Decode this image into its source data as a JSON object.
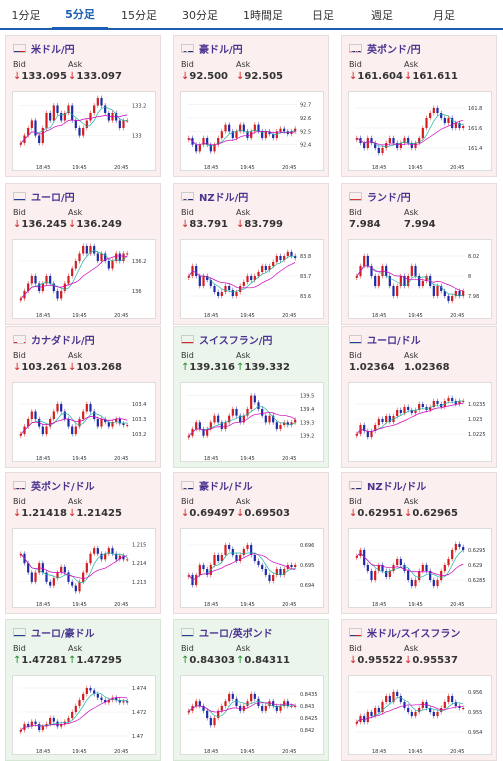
{
  "tabs": [
    "1分足",
    "5分足",
    "15分足",
    "30分足",
    "1時間足",
    "日足",
    "週足",
    "月足"
  ],
  "active_tab": 1,
  "labels": {
    "bid": "Bid",
    "ask": "Ask"
  },
  "colors": {
    "accent": "#1a5fb4",
    "down": "#d21e1e",
    "up": "#1c8c28",
    "candle_up": "#d21e1e",
    "candle_down": "#1f2aa8",
    "ma1": "#d000c0",
    "ma2": "#20b0a0"
  },
  "cards": [
    {
      "pair": "米ドル/円",
      "flag": "us",
      "bid": "133.095",
      "ask": "133.097",
      "dir": "down",
      "chart_data": {
        "type": "candlestick",
        "x_ticks": [
          "18:45",
          "19:45",
          "20:45"
        ],
        "y_ticks": [
          "133.2",
          "133"
        ],
        "ylim": [
          132.85,
          133.25
        ],
        "series": [
          132.95,
          133.0,
          133.05,
          133.1,
          133.0,
          132.95,
          133.05,
          133.15,
          133.1,
          133.2,
          133.15,
          133.1,
          133.15,
          133.2,
          133.1,
          133.05,
          133.0,
          133.05,
          133.1,
          133.15,
          133.2,
          133.25,
          133.2,
          133.15,
          133.1,
          133.15,
          133.1,
          133.05,
          133.1,
          133.1
        ]
      }
    },
    {
      "pair": "豪ドル/円",
      "flag": "au",
      "bid": "92.500",
      "ask": "92.505",
      "dir": "down",
      "chart_data": {
        "type": "candlestick",
        "x_ticks": [
          "18:45",
          "19:45",
          "20:45"
        ],
        "y_ticks": [
          "92.7",
          "92.6",
          "92.5",
          "92.4"
        ],
        "ylim": [
          92.3,
          92.75
        ],
        "series": [
          92.45,
          92.4,
          92.35,
          92.4,
          92.45,
          92.4,
          92.35,
          92.4,
          92.45,
          92.5,
          92.55,
          92.5,
          92.45,
          92.5,
          92.55,
          92.5,
          92.45,
          92.5,
          92.55,
          92.5,
          92.45,
          92.5,
          92.48,
          92.45,
          92.5,
          92.52,
          92.5,
          92.48,
          92.5,
          92.52
        ]
      }
    },
    {
      "pair": "英ポンド/円",
      "flag": "gb",
      "bid": "161.604",
      "ask": "161.611",
      "dir": "down",
      "chart_data": {
        "type": "candlestick",
        "x_ticks": [
          "18:45",
          "19:45",
          "20:45"
        ],
        "y_ticks": [
          "161.8",
          "161.6",
          "161.4"
        ],
        "ylim": [
          161.3,
          161.9
        ],
        "series": [
          161.5,
          161.45,
          161.4,
          161.5,
          161.45,
          161.4,
          161.35,
          161.4,
          161.45,
          161.5,
          161.45,
          161.4,
          161.45,
          161.5,
          161.45,
          161.4,
          161.45,
          161.5,
          161.6,
          161.7,
          161.75,
          161.8,
          161.75,
          161.7,
          161.65,
          161.7,
          161.6,
          161.65,
          161.6,
          161.62
        ]
      }
    },
    {
      "pair": "ユーロ/円",
      "flag": "eu",
      "bid": "136.245",
      "ask": "136.249",
      "dir": "down",
      "chart_data": {
        "type": "candlestick",
        "x_ticks": [
          "18:45",
          "19:45",
          "20:45"
        ],
        "y_ticks": [
          "136.2",
          "136"
        ],
        "ylim": [
          135.9,
          136.3
        ],
        "series": [
          135.95,
          136.0,
          136.05,
          136.1,
          136.05,
          136.0,
          136.05,
          136.1,
          136.05,
          136.0,
          135.95,
          136.0,
          136.05,
          136.1,
          136.15,
          136.2,
          136.25,
          136.3,
          136.25,
          136.3,
          136.25,
          136.2,
          136.25,
          136.2,
          136.15,
          136.2,
          136.25,
          136.2,
          136.25,
          136.25
        ]
      }
    },
    {
      "pair": "NZドル/円",
      "flag": "nz",
      "bid": "83.791",
      "ask": "83.799",
      "dir": "down",
      "chart_data": {
        "type": "candlestick",
        "x_ticks": [
          "18:45",
          "19:45",
          "20:45"
        ],
        "y_ticks": [
          "83.8",
          "83.7",
          "83.6"
        ],
        "ylim": [
          83.55,
          83.85
        ],
        "series": [
          83.7,
          83.75,
          83.7,
          83.65,
          83.7,
          83.68,
          83.65,
          83.62,
          83.6,
          83.62,
          83.65,
          83.63,
          83.6,
          83.62,
          83.65,
          83.67,
          83.7,
          83.68,
          83.7,
          83.72,
          83.75,
          83.73,
          83.75,
          83.77,
          83.8,
          83.78,
          83.8,
          83.82,
          83.8,
          83.79
        ]
      }
    },
    {
      "pair": "ランド/円",
      "flag": "za",
      "bid": "7.984",
      "ask": "7.994",
      "dir": "none",
      "chart_data": {
        "type": "candlestick",
        "x_ticks": [
          "18:45",
          "19:45",
          "20:45"
        ],
        "y_ticks": [
          "8.02",
          "8",
          "7.98"
        ],
        "ylim": [
          7.97,
          8.03
        ],
        "series": [
          8.0,
          8.01,
          8.02,
          8.01,
          8.0,
          7.99,
          8.0,
          8.01,
          8.0,
          7.99,
          7.98,
          7.99,
          8.0,
          7.99,
          8.0,
          8.01,
          8.0,
          7.99,
          7.995,
          8.0,
          7.99,
          7.98,
          7.99,
          7.985,
          7.98,
          7.975,
          7.98,
          7.985,
          7.98,
          7.985
        ]
      }
    },
    {
      "pair": "カナダドル/円",
      "flag": "ca",
      "bid": "103.261",
      "ask": "103.268",
      "dir": "down",
      "chart_data": {
        "type": "candlestick",
        "x_ticks": [
          "18:45",
          "19:45",
          "20:45"
        ],
        "y_ticks": [
          "103.4",
          "103.3",
          "103.2"
        ],
        "ylim": [
          103.1,
          103.5
        ],
        "series": [
          103.2,
          103.25,
          103.3,
          103.35,
          103.3,
          103.25,
          103.2,
          103.25,
          103.3,
          103.35,
          103.4,
          103.35,
          103.3,
          103.25,
          103.2,
          103.25,
          103.3,
          103.35,
          103.4,
          103.35,
          103.3,
          103.25,
          103.3,
          103.28,
          103.25,
          103.28,
          103.3,
          103.27,
          103.26,
          103.26
        ]
      }
    },
    {
      "pair": "スイスフラン/円",
      "flag": "ch",
      "bid": "139.316",
      "ask": "139.332",
      "dir": "up",
      "chart_data": {
        "type": "candlestick",
        "x_ticks": [
          "18:45",
          "19:45",
          "20:45"
        ],
        "y_ticks": [
          "139.5",
          "139.4",
          "139.3",
          "139.2"
        ],
        "ylim": [
          139.1,
          139.55
        ],
        "series": [
          139.2,
          139.25,
          139.3,
          139.25,
          139.2,
          139.25,
          139.3,
          139.35,
          139.3,
          139.25,
          139.3,
          139.35,
          139.4,
          139.35,
          139.3,
          139.35,
          139.4,
          139.5,
          139.45,
          139.4,
          139.35,
          139.3,
          139.35,
          139.3,
          139.25,
          139.28,
          139.3,
          139.28,
          139.3,
          139.32
        ]
      }
    },
    {
      "pair": "ユーロ/ドル",
      "flag": "eu",
      "bid": "1.02364",
      "ask": "1.02368",
      "dir": "none",
      "chart_data": {
        "type": "candlestick",
        "x_ticks": [],
        "y_ticks": [
          "1.0235",
          "1.023",
          "1.0225"
        ],
        "ylim": [
          1.022,
          1.024
        ],
        "series": [
          1.0225,
          1.0228,
          1.0226,
          1.0224,
          1.0226,
          1.0228,
          1.023,
          1.0229,
          1.0231,
          1.0229,
          1.0231,
          1.0233,
          1.0232,
          1.0234,
          1.0233,
          1.0232,
          1.0233,
          1.0235,
          1.0234,
          1.0233,
          1.0234,
          1.0236,
          1.0235,
          1.0234,
          1.0236,
          1.0237,
          1.0236,
          1.0235,
          1.0236,
          1.0236
        ]
      }
    },
    {
      "pair": "英ポンド/ドル",
      "flag": "gb",
      "bid": "1.21418",
      "ask": "1.21425",
      "dir": "down",
      "chart_data": {
        "type": "candlestick",
        "x_ticks": [
          "18:45",
          "19:45",
          "20:45"
        ],
        "y_ticks": [
          "1.215",
          "1.214",
          "1.213"
        ],
        "ylim": [
          1.2123,
          1.2155
        ],
        "series": [
          1.2145,
          1.214,
          1.2135,
          1.213,
          1.2135,
          1.214,
          1.2135,
          1.213,
          1.2128,
          1.2132,
          1.2135,
          1.2138,
          1.2135,
          1.213,
          1.2128,
          1.2125,
          1.213,
          1.2135,
          1.214,
          1.2145,
          1.2148,
          1.2145,
          1.2142,
          1.2145,
          1.2148,
          1.2145,
          1.2142,
          1.2144,
          1.2142,
          1.2142
        ]
      }
    },
    {
      "pair": "豪ドル/ドル",
      "flag": "au",
      "bid": "0.69497",
      "ask": "0.69503",
      "dir": "down",
      "chart_data": {
        "type": "candlestick",
        "x_ticks": [
          "18:45",
          "19:45",
          "20:45"
        ],
        "y_ticks": [
          "0.696",
          "0.695",
          "0.694"
        ],
        "ylim": [
          0.6935,
          0.6965
        ],
        "series": [
          0.6945,
          0.694,
          0.6945,
          0.695,
          0.6948,
          0.6945,
          0.695,
          0.6955,
          0.6952,
          0.6955,
          0.696,
          0.6958,
          0.6955,
          0.6952,
          0.6955,
          0.6958,
          0.696,
          0.6955,
          0.6952,
          0.695,
          0.6948,
          0.6945,
          0.6942,
          0.6945,
          0.6948,
          0.6945,
          0.6948,
          0.695,
          0.6949,
          0.695
        ]
      }
    },
    {
      "pair": "NZドル/ドル",
      "flag": "nz",
      "bid": "0.62951",
      "ask": "0.62965",
      "dir": "down",
      "chart_data": {
        "type": "candlestick",
        "x_ticks": [
          "18:45",
          "19:45",
          "20:45"
        ],
        "y_ticks": [
          "0.6295",
          "0.629",
          "0.6285"
        ],
        "ylim": [
          0.628,
          0.63
        ],
        "series": [
          0.6293,
          0.6295,
          0.629,
          0.6288,
          0.6285,
          0.6288,
          0.629,
          0.6288,
          0.6286,
          0.6288,
          0.629,
          0.6292,
          0.629,
          0.6288,
          0.6285,
          0.6283,
          0.6285,
          0.6288,
          0.629,
          0.6288,
          0.6285,
          0.6283,
          0.6285,
          0.6288,
          0.629,
          0.6292,
          0.6295,
          0.6297,
          0.6296,
          0.6295
        ]
      }
    },
    {
      "pair": "ユーロ/豪ドル",
      "flag": "eu",
      "bid": "1.47281",
      "ask": "1.47295",
      "dir": "up",
      "chart_data": {
        "type": "candlestick",
        "x_ticks": [
          "18:45",
          "19:45",
          "20:45"
        ],
        "y_ticks": [
          "1.474",
          "1.472",
          "1.47"
        ],
        "ylim": [
          1.4695,
          1.4745
        ],
        "series": [
          1.4705,
          1.471,
          1.4708,
          1.4712,
          1.471,
          1.4705,
          1.4708,
          1.471,
          1.4715,
          1.4712,
          1.4708,
          1.471,
          1.4712,
          1.4715,
          1.472,
          1.4725,
          1.473,
          1.4735,
          1.474,
          1.4738,
          1.4735,
          1.4732,
          1.473,
          1.4728,
          1.473,
          1.4732,
          1.473,
          1.4728,
          1.4729,
          1.4728
        ]
      }
    },
    {
      "pair": "ユーロ/英ポンド",
      "flag": "eu",
      "bid": "0.84303",
      "ask": "0.84311",
      "dir": "up",
      "chart_data": {
        "type": "candlestick",
        "x_ticks": [
          "18:45",
          "19:45",
          "20:45"
        ],
        "y_ticks": [
          "0.8435",
          "0.843",
          "0.8425",
          "0.842"
        ],
        "ylim": [
          0.8415,
          0.844
        ],
        "series": [
          0.8428,
          0.843,
          0.8432,
          0.843,
          0.8428,
          0.8425,
          0.8422,
          0.8425,
          0.8428,
          0.843,
          0.8432,
          0.8435,
          0.8433,
          0.843,
          0.8428,
          0.843,
          0.8432,
          0.8435,
          0.8433,
          0.843,
          0.8428,
          0.843,
          0.8432,
          0.843,
          0.8428,
          0.843,
          0.8432,
          0.843,
          0.843,
          0.843
        ]
      }
    },
    {
      "pair": "米ドル/スイスフラン",
      "flag": "us",
      "bid": "0.95522",
      "ask": "0.95537",
      "dir": "down",
      "chart_data": {
        "type": "candlestick",
        "x_ticks": [
          "18:45",
          "19:45",
          "20:45"
        ],
        "y_ticks": [
          "0.956",
          "0.955",
          "0.954"
        ],
        "ylim": [
          0.9535,
          0.9565
        ],
        "series": [
          0.9545,
          0.9548,
          0.9545,
          0.955,
          0.9548,
          0.9552,
          0.955,
          0.9555,
          0.9558,
          0.9555,
          0.956,
          0.9558,
          0.9555,
          0.9552,
          0.955,
          0.9548,
          0.955,
          0.9552,
          0.9555,
          0.9552,
          0.955,
          0.9548,
          0.955,
          0.9552,
          0.9555,
          0.9558,
          0.9555,
          0.9553,
          0.9552,
          0.9552
        ]
      }
    }
  ]
}
